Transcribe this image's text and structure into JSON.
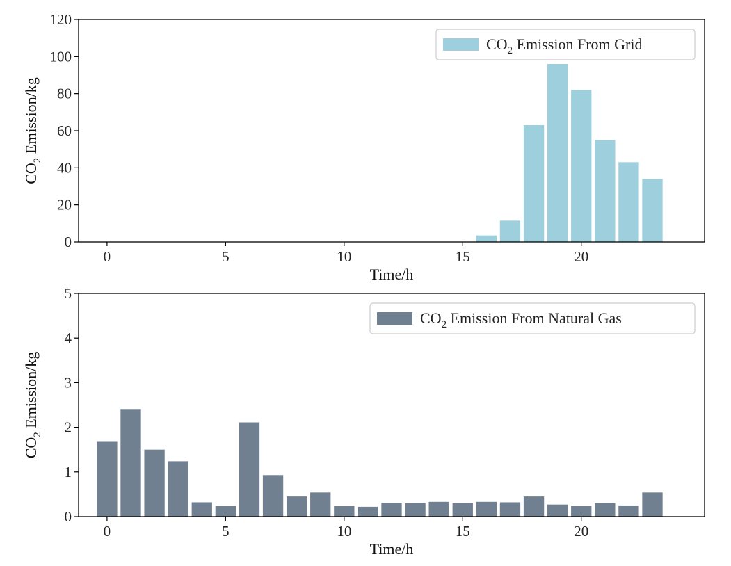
{
  "chart_data": [
    {
      "type": "bar",
      "title": "",
      "xlabel": "Time/h",
      "ylabel": "CO₂ Emission/kg",
      "ylim": [
        0,
        120
      ],
      "yticks": [
        0,
        20,
        40,
        60,
        80,
        100,
        120
      ],
      "xticks": [
        0,
        5,
        10,
        15,
        20
      ],
      "legend": {
        "label": "CO₂ Emission From Grid",
        "location": "upper right"
      },
      "color": "#9ecfdc",
      "grid": false,
      "x": [
        0,
        1,
        2,
        3,
        4,
        5,
        6,
        7,
        8,
        9,
        10,
        11,
        12,
        13,
        14,
        15,
        16,
        17,
        18,
        19,
        20,
        21,
        22,
        23
      ],
      "values": [
        0,
        0,
        0,
        0,
        0,
        0,
        0,
        0,
        0,
        0,
        0,
        0,
        0,
        0,
        0,
        0,
        3.5,
        11.5,
        63,
        96,
        82,
        55,
        43,
        34
      ]
    },
    {
      "type": "bar",
      "title": "",
      "xlabel": "Time/h",
      "ylabel": "CO₂ Emission/kg",
      "ylim": [
        0,
        5
      ],
      "yticks": [
        0,
        1,
        2,
        3,
        4,
        5
      ],
      "xticks": [
        0,
        5,
        10,
        15,
        20
      ],
      "legend": {
        "label": "CO₂ Emission From Natural Gas",
        "location": "upper right"
      },
      "color": "#708090",
      "grid": false,
      "x": [
        0,
        1,
        2,
        3,
        4,
        5,
        6,
        7,
        8,
        9,
        10,
        11,
        12,
        13,
        14,
        15,
        16,
        17,
        18,
        19,
        20,
        21,
        22,
        23
      ],
      "values": [
        1.69,
        2.41,
        1.5,
        1.24,
        0.32,
        0.24,
        2.11,
        0.93,
        0.45,
        0.54,
        0.24,
        0.22,
        0.31,
        0.3,
        0.33,
        0.3,
        0.33,
        0.32,
        0.45,
        0.27,
        0.24,
        0.3,
        0.25,
        0.54
      ]
    }
  ]
}
